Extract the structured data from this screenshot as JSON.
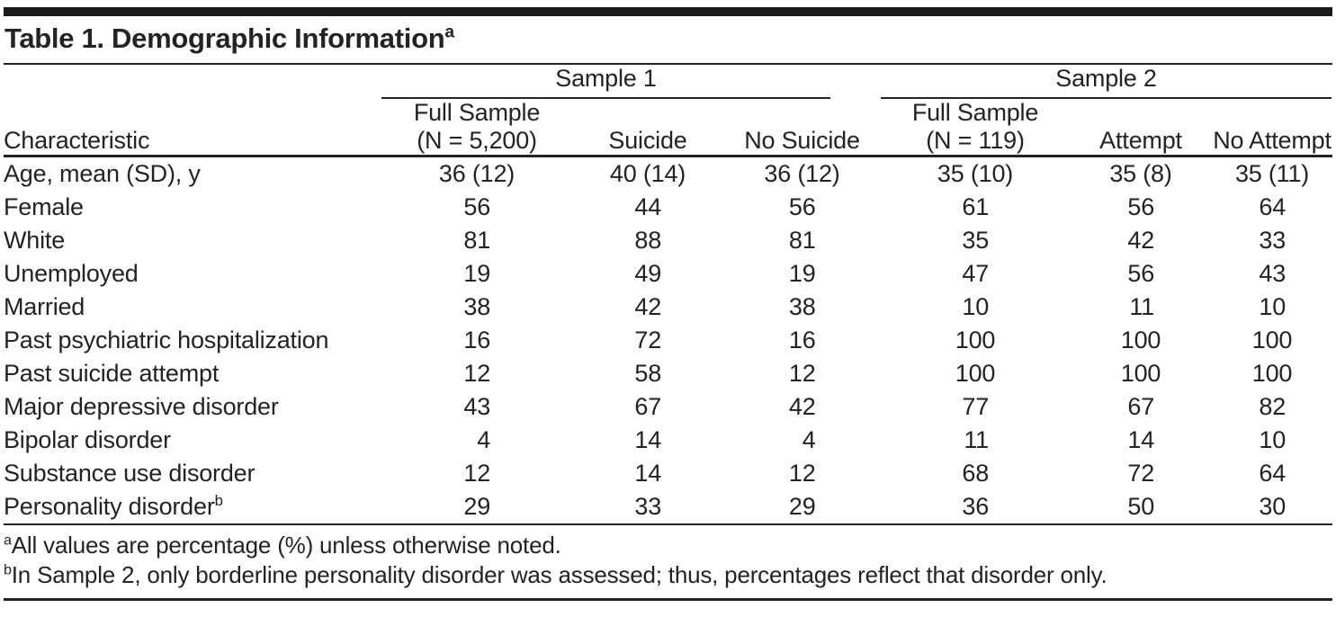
{
  "table": {
    "title": "Table 1. Demographic Information",
    "title_superscript": "a",
    "group_headers": [
      {
        "label": "Sample 1"
      },
      {
        "label": "Sample 2"
      }
    ],
    "columns": [
      {
        "label": "Characteristic"
      },
      {
        "lines": [
          "Full Sample",
          "(N = 5,200)"
        ]
      },
      {
        "label": "Suicide"
      },
      {
        "label": "No Suicide"
      },
      {
        "lines": [
          "Full Sample",
          "(N = 119)"
        ]
      },
      {
        "label": "Attempt"
      },
      {
        "label": "No Attempt"
      }
    ],
    "rows": [
      {
        "label": "Age, mean (SD), y",
        "values": [
          "36 (12)",
          "40 (14)",
          "36 (12)",
          "35 (10)",
          "35 (8)",
          "35 (11)"
        ]
      },
      {
        "label": "Female",
        "values": [
          "56",
          "44",
          "56",
          "61",
          "56",
          "64"
        ]
      },
      {
        "label": "White",
        "values": [
          "81",
          "88",
          "81",
          "35",
          "42",
          "33"
        ]
      },
      {
        "label": "Unemployed",
        "values": [
          "19",
          "49",
          "19",
          "47",
          "56",
          "43"
        ]
      },
      {
        "label": "Married",
        "values": [
          "38",
          "42",
          "38",
          "10",
          "11",
          "10"
        ]
      },
      {
        "label": "Past psychiatric hospitalization",
        "values": [
          "16",
          "72",
          "16",
          "100",
          "100",
          "100"
        ]
      },
      {
        "label": "Past suicide attempt",
        "values": [
          "12",
          "58",
          "12",
          "100",
          "100",
          "100"
        ]
      },
      {
        "label": "Major depressive disorder",
        "values": [
          "43",
          "67",
          "42",
          "77",
          "67",
          "82"
        ]
      },
      {
        "label": "Bipolar disorder",
        "values": [
          "4",
          "14",
          "4",
          "11",
          "14",
          "10"
        ]
      },
      {
        "label": "Substance use disorder",
        "values": [
          "12",
          "14",
          "12",
          "68",
          "72",
          "64"
        ]
      },
      {
        "label": "Personality disorder",
        "label_superscript": "b",
        "values": [
          "29",
          "33",
          "29",
          "36",
          "50",
          "30"
        ]
      }
    ],
    "footnotes": [
      {
        "marker": "a",
        "text": "All values are percentage (%) unless otherwise noted."
      },
      {
        "marker": "b",
        "text": "In Sample 2, only borderline personality disorder was assessed; thus, percentages reflect that disorder only."
      }
    ]
  },
  "colors": {
    "text": "#262223",
    "rule": "#262223",
    "top_bar": "#1c1a19",
    "background": "#ffffff"
  }
}
